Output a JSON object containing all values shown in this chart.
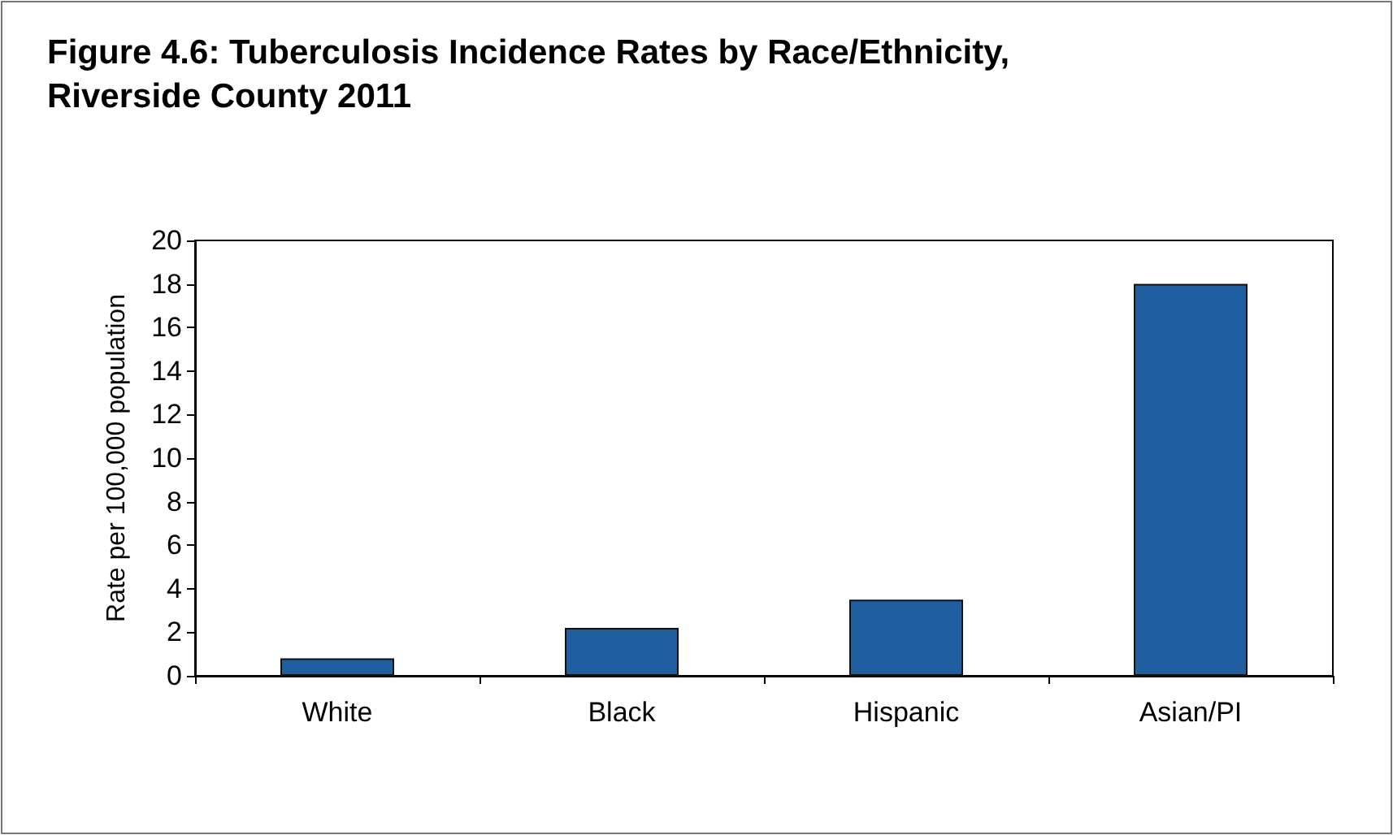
{
  "chart_data": {
    "type": "bar",
    "title": "Figure 4.6: Tuberculosis Incidence Rates by Race/Ethnicity,\nRiverside County 2011",
    "ylabel": "Rate per 100,000 population",
    "categories": [
      "White",
      "Black",
      "Hispanic",
      "Asian/PI"
    ],
    "values": [
      0.8,
      2.2,
      3.5,
      18.0
    ],
    "color": "#1f5f9f",
    "ylim": [
      0,
      20
    ],
    "yticks": [
      0,
      2,
      4,
      6,
      8,
      10,
      12,
      14,
      16,
      18,
      20
    ],
    "grid": false
  }
}
